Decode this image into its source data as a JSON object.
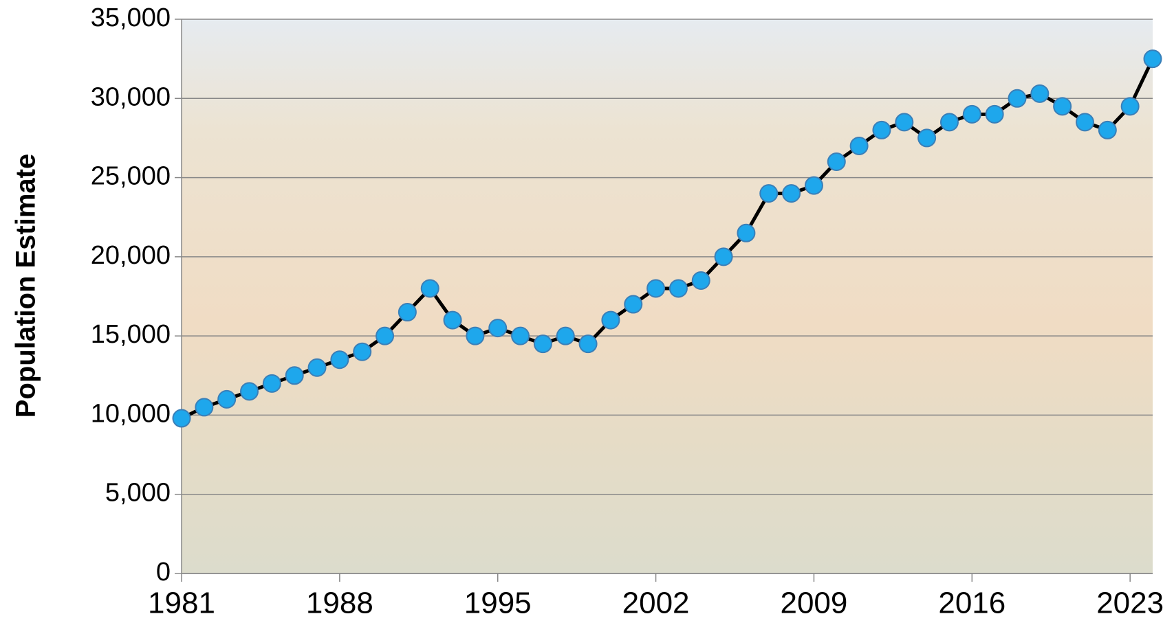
{
  "chart_data": {
    "type": "line",
    "y_label": "Population Estimate",
    "x": [
      1981,
      1982,
      1983,
      1984,
      1985,
      1986,
      1987,
      1988,
      1989,
      1990,
      1991,
      1992,
      1993,
      1994,
      1995,
      1996,
      1997,
      1998,
      1999,
      2000,
      2001,
      2002,
      2003,
      2004,
      2005,
      2006,
      2007,
      2008,
      2009,
      2010,
      2011,
      2012,
      2013,
      2014,
      2015,
      2016,
      2017,
      2018,
      2019,
      2020,
      2021,
      2022,
      2023,
      2024
    ],
    "series": [
      {
        "color": "#1ea7ec",
        "values": [
          9800,
          10500,
          11000,
          11500,
          12000,
          12500,
          13000,
          13500,
          14000,
          15000,
          16500,
          18000,
          16000,
          15000,
          15500,
          15000,
          14500,
          15000,
          14500,
          16000,
          17000,
          18000,
          18000,
          18500,
          20000,
          21500,
          24000,
          24000,
          24500,
          26000,
          27000,
          28000,
          28500,
          27500,
          28500,
          29000,
          29000,
          30000,
          30300,
          29500,
          28500,
          28000,
          29500,
          32500
        ]
      }
    ],
    "xlim": [
      1981,
      2024
    ],
    "xticks": [
      1981,
      1988,
      1995,
      2002,
      2009,
      2016,
      2023
    ],
    "ylim": [
      0,
      35000
    ],
    "yticks": [
      0,
      {
        "value": 5000,
        "label": "5,000"
      },
      {
        "value": 10000,
        "label": "10,000"
      },
      {
        "value": 15000,
        "label": "15,000"
      },
      {
        "value": 20000,
        "label": "20,000"
      },
      {
        "value": 25000,
        "label": "25,000"
      },
      {
        "value": 30000,
        "label": "30,000"
      },
      {
        "value": 35000,
        "label": "35,000"
      }
    ],
    "grid": true
  }
}
